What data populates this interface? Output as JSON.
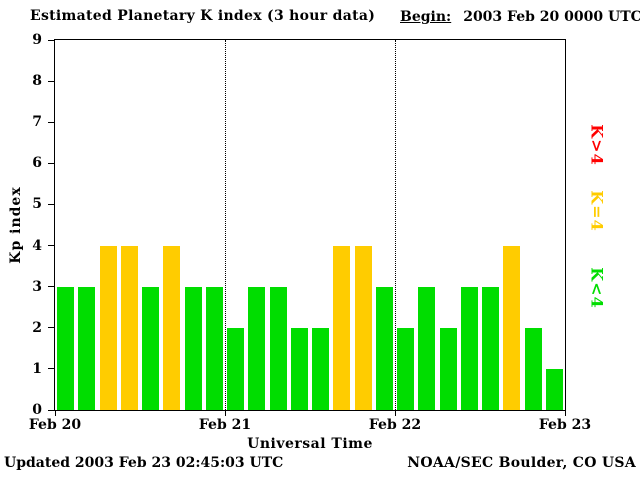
{
  "header": {
    "title": "Estimated Planetary K index (3 hour data)",
    "begin_label": "Begin:",
    "begin_value": "2003 Feb 20 0000 UTC"
  },
  "footer": {
    "updated": "Updated 2003 Feb 23 02:45:03 UTC",
    "source": "NOAA/SEC Boulder, CO USA"
  },
  "legend": {
    "items": [
      {
        "label": "K>4",
        "color": "#ff0000"
      },
      {
        "label": "K=4",
        "color": "#ffcc00"
      },
      {
        "label": "K<4",
        "color": "#00dd00"
      }
    ]
  },
  "chart_data": {
    "type": "bar",
    "title": "Estimated Planetary K index (3 hour data)",
    "xlabel": "Universal Time",
    "ylabel": "Kp index",
    "ylim": [
      0,
      9
    ],
    "yticks": [
      0,
      1,
      2,
      3,
      4,
      5,
      6,
      7,
      8,
      9
    ],
    "x_tick_labels": [
      "Feb 20",
      "Feb 21",
      "Feb 22",
      "Feb 23"
    ],
    "hours_per_bar": 3,
    "bars_per_day": 8,
    "grid": "dotted-day-dividers",
    "legend_position": "right",
    "begin": "2003 Feb 20 0000 UTC",
    "series": [
      {
        "name": "Kp",
        "values": [
          3,
          3,
          4,
          4,
          3,
          4,
          3,
          3,
          2,
          3,
          3,
          2,
          2,
          4,
          4,
          3,
          2,
          3,
          2,
          3,
          3,
          4,
          2,
          1
        ]
      }
    ],
    "color_rules": {
      "k_lt_4": "#00dd00",
      "k_eq_4": "#ffcc00",
      "k_gt_4": "#ff0000"
    }
  }
}
